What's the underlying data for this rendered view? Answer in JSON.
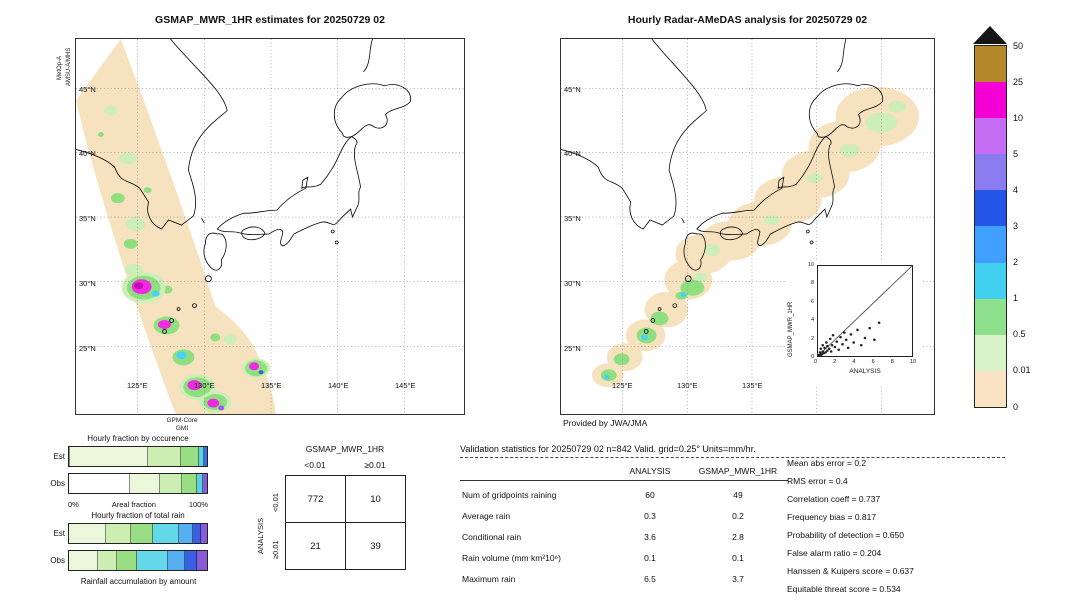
{
  "left_map": {
    "title": "GSMAP_MWR_1HR estimates for 20250729 02",
    "sensor_label_line1": "MetOp-A",
    "sensor_label_line2": "AMSU-A/MHS",
    "sensor_label_bottom_line1": "GPM-Core",
    "sensor_label_bottom_line2": "GMI",
    "lat_tick_labels": [
      "45°N",
      "40°N",
      "35°N",
      "30°N",
      "25°N"
    ],
    "lon_tick_labels": [
      "125°E",
      "130°E",
      "135°E",
      "140°E",
      "145°E"
    ]
  },
  "right_map": {
    "title": "Hourly Radar-AMeDAS analysis for 20250729 02",
    "credit": "Provided by JWA/JMA",
    "lat_tick_labels": [
      "45°N",
      "40°N",
      "35°N",
      "30°N",
      "25°N"
    ],
    "lon_tick_labels": [
      "125°E",
      "130°E",
      "135°E"
    ]
  },
  "colorbar": {
    "tick_labels": [
      "50",
      "25",
      "10",
      "5",
      "4",
      "3",
      "2",
      "1",
      "0.5",
      "0.01",
      "0"
    ],
    "segment_colors_top_to_bottom": [
      "#b5872b",
      "#f400d6",
      "#c46df2",
      "#8a7bf0",
      "#2356e8",
      "#3fa0ff",
      "#41d0f0",
      "#8fe08c",
      "#d9f3c9",
      "#f9e3c2"
    ]
  },
  "inset_scatter": {
    "ylabel": "GSMAP_MWR_1HR",
    "xlabel": "ANALYSIS",
    "tick_labels": [
      "0",
      "2",
      "4",
      "6",
      "8",
      "10"
    ]
  },
  "occurrence_chart": {
    "title": "Hourly fraction by occurence",
    "x_min_label": "0%",
    "x_axis_label": "Areal fraction",
    "x_max_label": "100%",
    "rows": [
      {
        "label": "Est",
        "segments": [
          {
            "color": "#ffffff",
            "pct": 1
          },
          {
            "color": "#eaf7da",
            "pct": 56
          },
          {
            "color": "#cdeeb2",
            "pct": 24
          },
          {
            "color": "#9ade84",
            "pct": 13
          },
          {
            "color": "#5ad0e4",
            "pct": 4
          },
          {
            "color": "#3a6be0",
            "pct": 2
          }
        ]
      },
      {
        "label": "Obs",
        "segments": [
          {
            "color": "#ffffff",
            "pct": 44
          },
          {
            "color": "#eaf7da",
            "pct": 22
          },
          {
            "color": "#cdeeb2",
            "pct": 16
          },
          {
            "color": "#9ade84",
            "pct": 11
          },
          {
            "color": "#5ad0e4",
            "pct": 4
          },
          {
            "color": "#8a5bd8",
            "pct": 3
          }
        ]
      }
    ]
  },
  "totalrain_chart": {
    "title": "Hourly fraction of total rain",
    "caption": "Rainfall accumulation by amount",
    "rows": [
      {
        "label": "Est",
        "segments": [
          {
            "color": "#eaf7da",
            "pct": 27
          },
          {
            "color": "#cdeeb2",
            "pct": 18
          },
          {
            "color": "#9ade84",
            "pct": 16
          },
          {
            "color": "#63d8e8",
            "pct": 19
          },
          {
            "color": "#57aef0",
            "pct": 10
          },
          {
            "color": "#3a5fe0",
            "pct": 6
          },
          {
            "color": "#8a5bd8",
            "pct": 4
          }
        ]
      },
      {
        "label": "Obs",
        "segments": [
          {
            "color": "#eaf7da",
            "pct": 21
          },
          {
            "color": "#cdeeb2",
            "pct": 14
          },
          {
            "color": "#9ade84",
            "pct": 14
          },
          {
            "color": "#63d8e8",
            "pct": 23
          },
          {
            "color": "#57aef0",
            "pct": 12
          },
          {
            "color": "#3a5fe0",
            "pct": 9
          },
          {
            "color": "#8a5bd8",
            "pct": 7
          }
        ]
      }
    ]
  },
  "contingency": {
    "title": "GSMAP_MWR_1HR",
    "col_headers": [
      "<0.01",
      "≥0.01"
    ],
    "row_axis_label": "ANALYSIS",
    "row_headers": [
      "<0.01",
      "≥0.01"
    ],
    "values": [
      [
        "772",
        "10"
      ],
      [
        "21",
        "39"
      ]
    ]
  },
  "validation": {
    "title": "Validation statistics for 20250729 02  n=842 Valid. grid=0.25° Units=mm/hr.",
    "col_headers": [
      "ANALYSIS",
      "GSMAP_MWR_1HR"
    ],
    "rows": [
      {
        "label": "Num of gridpoints raining",
        "analysis": "60",
        "gsmap": "49"
      },
      {
        "label": "Average rain",
        "analysis": "0.3",
        "gsmap": "0.2"
      },
      {
        "label": "Conditional rain",
        "analysis": "3.6",
        "gsmap": "2.8"
      },
      {
        "label": "Rain volume (mm km²10⁶)",
        "analysis": "0.1",
        "gsmap": "0.1"
      },
      {
        "label": "Maximum rain",
        "analysis": "6.5",
        "gsmap": "3.7"
      }
    ],
    "stats": [
      {
        "label": "Mean abs error",
        "value": "0.2"
      },
      {
        "label": "RMS error",
        "value": "0.4"
      },
      {
        "label": "Correlation coeff",
        "value": "0.737"
      },
      {
        "label": "Frequency bias",
        "value": "0.817"
      },
      {
        "label": "Probability of detection",
        "value": "0.650"
      },
      {
        "label": "False alarm ratio",
        "value": "0.204"
      },
      {
        "label": "Hanssen & Kuipers score",
        "value": "0.637"
      },
      {
        "label": "Equitable threat score",
        "value": "0.534"
      }
    ]
  },
  "chart_data": [
    {
      "type": "table",
      "title": "Contingency table (gridpoints): GSMAP_MWR_1HR vs ANALYSIS",
      "columns": [
        "GSMAP_MWR_1HR <0.01",
        "GSMAP_MWR_1HR ≥0.01"
      ],
      "rows": [
        "ANALYSIS <0.01",
        "ANALYSIS ≥0.01"
      ],
      "values": [
        [
          772,
          10
        ],
        [
          21,
          39
        ]
      ]
    },
    {
      "type": "bar",
      "title": "Hourly fraction by occurence",
      "orientation": "horizontal_stacked",
      "categories": [
        "Est",
        "Obs"
      ],
      "xlabel": "Areal fraction",
      "xlim_pct": [
        0,
        100
      ],
      "series_pct": {
        "Est": [
          1,
          56,
          24,
          13,
          4,
          2
        ],
        "Obs": [
          44,
          22,
          16,
          11,
          4,
          3
        ]
      }
    },
    {
      "type": "bar",
      "title": "Hourly fraction of total rain",
      "orientation": "horizontal_stacked",
      "categories": [
        "Est",
        "Obs"
      ],
      "xlabel": "Rainfall accumulation by amount",
      "xlim_pct": [
        0,
        100
      ],
      "series_pct": {
        "Est": [
          27,
          18,
          16,
          19,
          10,
          6,
          4
        ],
        "Obs": [
          21,
          14,
          14,
          23,
          12,
          9,
          7
        ]
      }
    },
    {
      "type": "scatter",
      "title": "GSMAP_MWR_1HR vs ANALYSIS (inset)",
      "xlabel": "ANALYSIS",
      "ylabel": "GSMAP_MWR_1HR",
      "xlim": [
        0,
        10
      ],
      "ylim": [
        0,
        10
      ],
      "diagonal_line": true,
      "points": [
        [
          0.1,
          0.1
        ],
        [
          0.2,
          0.4
        ],
        [
          0.3,
          0.1
        ],
        [
          0.3,
          0.8
        ],
        [
          0.4,
          0.2
        ],
        [
          0.5,
          0.5
        ],
        [
          0.5,
          1.2
        ],
        [
          0.6,
          0.3
        ],
        [
          0.7,
          0.9
        ],
        [
          0.8,
          0.4
        ],
        [
          0.9,
          1.5
        ],
        [
          1.0,
          0.6
        ],
        [
          1.0,
          1.1
        ],
        [
          1.2,
          0.8
        ],
        [
          1.3,
          1.9
        ],
        [
          1.4,
          0.5
        ],
        [
          1.5,
          1.2
        ],
        [
          1.6,
          2.3
        ],
        [
          1.8,
          1.0
        ],
        [
          2.0,
          1.6
        ],
        [
          2.2,
          0.7
        ],
        [
          2.4,
          2.1
        ],
        [
          2.6,
          1.3
        ],
        [
          2.8,
          2.6
        ],
        [
          3.0,
          1.8
        ],
        [
          3.2,
          0.9
        ],
        [
          3.5,
          2.4
        ],
        [
          3.8,
          1.5
        ],
        [
          4.2,
          2.9
        ],
        [
          4.6,
          1.2
        ],
        [
          5.0,
          2.0
        ],
        [
          5.5,
          3.1
        ],
        [
          6.0,
          1.8
        ],
        [
          6.5,
          3.7
        ]
      ]
    },
    {
      "type": "table",
      "title": "Validation statistics for 20250729 02 (n=842, grid=0.25°, units=mm/hr)",
      "columns": [
        "ANALYSIS",
        "GSMAP_MWR_1HR"
      ],
      "rows": [
        [
          "Num of gridpoints raining",
          60,
          49
        ],
        [
          "Average rain",
          0.3,
          0.2
        ],
        [
          "Conditional rain",
          3.6,
          2.8
        ],
        [
          "Rain volume (mm km²10⁶)",
          0.1,
          0.1
        ],
        [
          "Maximum rain",
          6.5,
          3.7
        ]
      ],
      "scores": {
        "Mean abs error": 0.2,
        "RMS error": 0.4,
        "Correlation coeff": 0.737,
        "Frequency bias": 0.817,
        "Probability of detection": 0.65,
        "False alarm ratio": 0.204,
        "Hanssen & Kuipers score": 0.637,
        "Equitable threat score": 0.534
      }
    },
    {
      "type": "heatmap",
      "title": "Precipitation colour scale (mm/hr)",
      "levels": [
        0,
        0.01,
        0.5,
        1,
        2,
        3,
        4,
        5,
        10,
        25,
        50
      ],
      "colors_low_to_high": [
        "#f9e3c2",
        "#d9f3c9",
        "#8fe08c",
        "#41d0f0",
        "#3fa0ff",
        "#2356e8",
        "#8a7bf0",
        "#c46df2",
        "#f400d6",
        "#b5872b"
      ]
    }
  ]
}
